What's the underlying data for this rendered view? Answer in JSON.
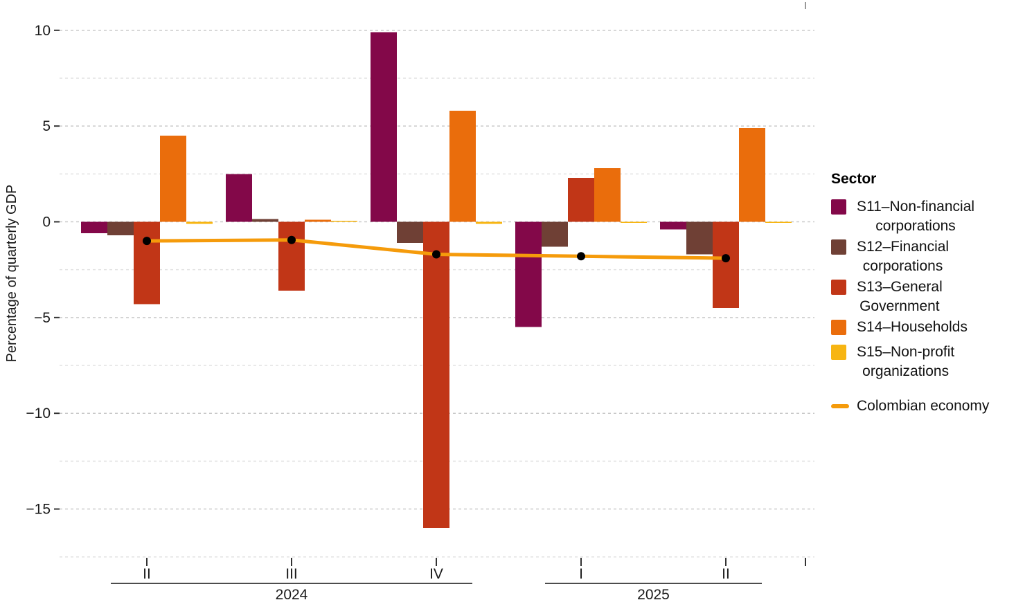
{
  "colors": {
    "s11": "#830849",
    "s12": "#6F4035",
    "s13": "#C13617",
    "s14": "#EA6D0C",
    "s15": "#F7B512",
    "line": "#F59B0B",
    "dot": "#000000",
    "grid_major": "#c9c9c9",
    "grid_minor": "#e2e2e2",
    "axis_text": "#1a1a1a",
    "tick_mark": "#333333",
    "stray_tick_top": "#999999"
  },
  "y_axis": {
    "title": "Percentage of quarterly GDP",
    "ticks": [
      {
        "label": "10",
        "value": 10
      },
      {
        "label": "5",
        "value": 5
      },
      {
        "label": "0",
        "value": 0
      },
      {
        "label": "−5",
        "value": -5
      },
      {
        "label": "−10",
        "value": -10
      },
      {
        "label": "−15",
        "value": -15
      }
    ],
    "minor_values": [
      7.5,
      2.5,
      -2.5,
      -7.5,
      -12.5,
      -17.5
    ]
  },
  "x_axis": {
    "quarter_labels": [
      "II",
      "III",
      "IV",
      "I",
      "II"
    ],
    "year_groups": [
      {
        "label": "2024",
        "quarters": [
          0,
          1,
          2
        ]
      },
      {
        "label": "2025",
        "quarters": [
          3,
          4
        ]
      }
    ]
  },
  "legend": {
    "title": "Sector",
    "items": [
      {
        "key": "s11",
        "lines": [
          "S11–Non-financial",
          "corporations"
        ]
      },
      {
        "key": "s12",
        "lines": [
          "S12–Financial",
          "corporations"
        ]
      },
      {
        "key": "s13",
        "lines": [
          "S13–General",
          "Government"
        ]
      },
      {
        "key": "s14",
        "lines": [
          "S14–Households"
        ]
      },
      {
        "key": "s15",
        "lines": [
          "S15–Non-profit",
          "organizations"
        ]
      }
    ],
    "line_item": {
      "label": "Colombian economy"
    }
  },
  "chart_data": {
    "type": "bar",
    "title": "",
    "xlabel": "",
    "ylabel": "Percentage of quarterly GDP",
    "categories": [
      "2024 Q2",
      "2024 Q3",
      "2024 Q4",
      "2025 Q1",
      "2025 Q2"
    ],
    "series": [
      {
        "name": "S11–Non-financial corporations",
        "color_key": "s11",
        "values": [
          -0.6,
          2.5,
          9.9,
          -5.5,
          -0.4
        ]
      },
      {
        "name": "S12–Financial corporations",
        "color_key": "s12",
        "values": [
          -0.7,
          0.15,
          -1.1,
          -1.3,
          -1.7
        ]
      },
      {
        "name": "S13–General Government",
        "color_key": "s13",
        "values": [
          -4.3,
          -3.6,
          -16.0,
          2.3,
          -4.5
        ]
      },
      {
        "name": "S14–Households",
        "color_key": "s14",
        "values": [
          4.5,
          0.1,
          5.8,
          2.8,
          4.9
        ]
      },
      {
        "name": "S15–Non-profit organizations",
        "color_key": "s15",
        "values": [
          -0.1,
          0.05,
          -0.1,
          -0.05,
          -0.05
        ]
      }
    ],
    "line_series": {
      "name": "Colombian economy",
      "type": "line",
      "values": [
        -1.0,
        -0.95,
        -1.7,
        -1.8,
        -1.9
      ]
    },
    "ylim": [
      -17.5,
      11.3
    ],
    "grid": "horizontal dashed, major every 5, minor every 2.5",
    "legend_position": "right"
  }
}
